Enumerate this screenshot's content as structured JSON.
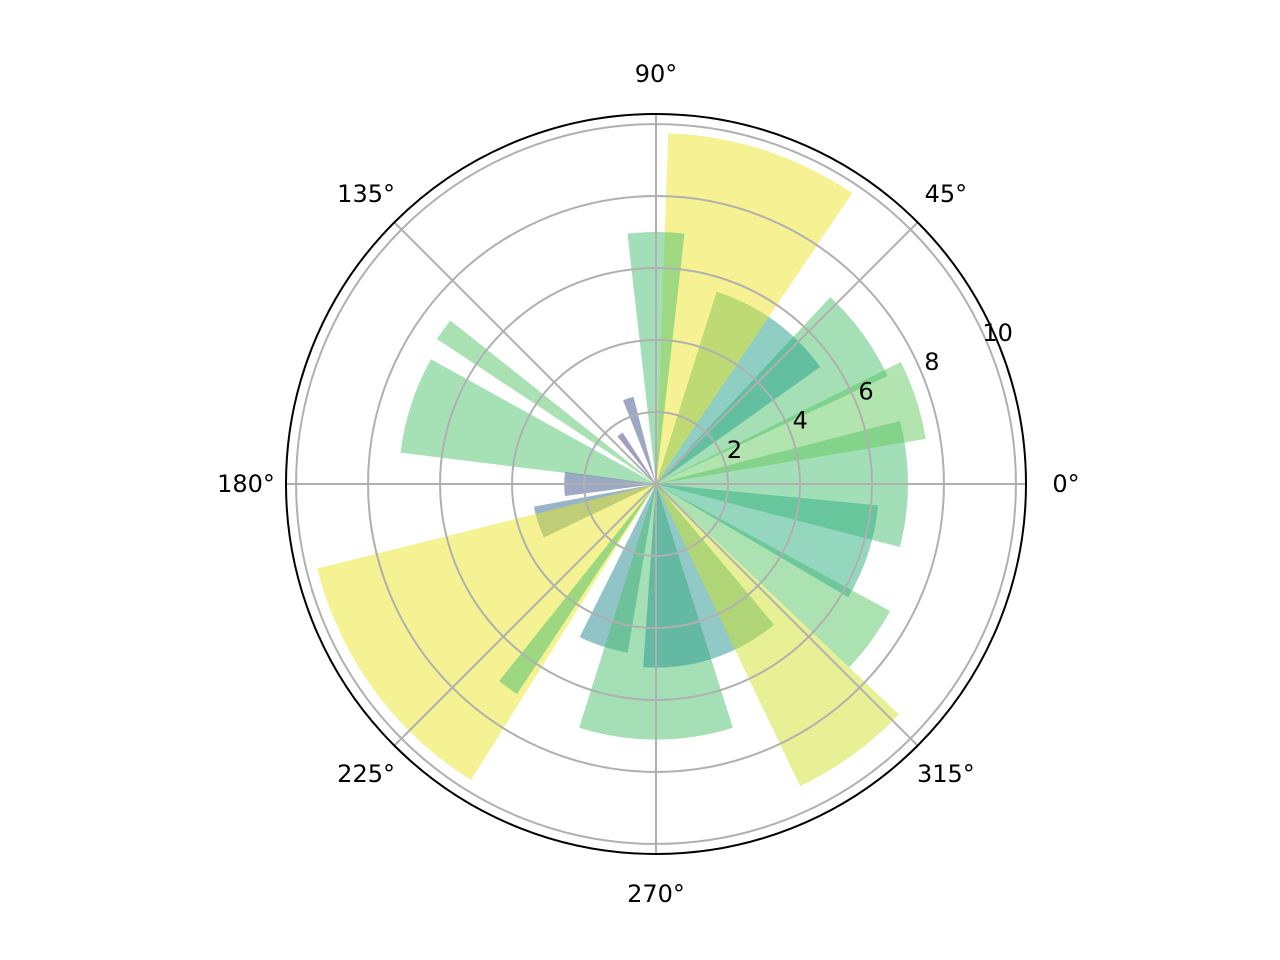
{
  "chart_data": {
    "type": "bar",
    "projection": "polar",
    "title": "",
    "theta_unit": "degrees",
    "theta": [
      0,
      18,
      36,
      54,
      72,
      90,
      108,
      126,
      144,
      162,
      180,
      198,
      216,
      234,
      252,
      270,
      288,
      306,
      324,
      342
    ],
    "radii": [
      7.0,
      7.6,
      7.1,
      5.6,
      9.75,
      7.0,
      2.5,
      1.7,
      7.3,
      7.15,
      2.55,
      3.45,
      9.7,
      7.0,
      4.75,
      7.1,
      5.1,
      9.3,
      7.4,
      6.2
    ],
    "widths_deg": [
      29,
      17,
      22,
      37,
      32,
      13,
      7,
      6,
      5,
      22,
      15,
      15,
      44,
      5,
      17,
      35,
      44,
      21,
      15,
      25
    ],
    "colormap": "viridis (radius / 10)",
    "alpha": 0.5,
    "rlim": [
      0,
      10.28
    ],
    "r_ticks": [
      "2",
      "4",
      "6",
      "8",
      "10"
    ],
    "r_tick_values": [
      2,
      4,
      6,
      8,
      10
    ],
    "theta_ticks": [
      "0°",
      "45°",
      "90°",
      "135°",
      "180°",
      "225°",
      "270°",
      "315°"
    ],
    "theta_tick_values": [
      0,
      45,
      90,
      135,
      180,
      225,
      270,
      315
    ],
    "grid": true,
    "grid_color": "#b0b0b0"
  }
}
